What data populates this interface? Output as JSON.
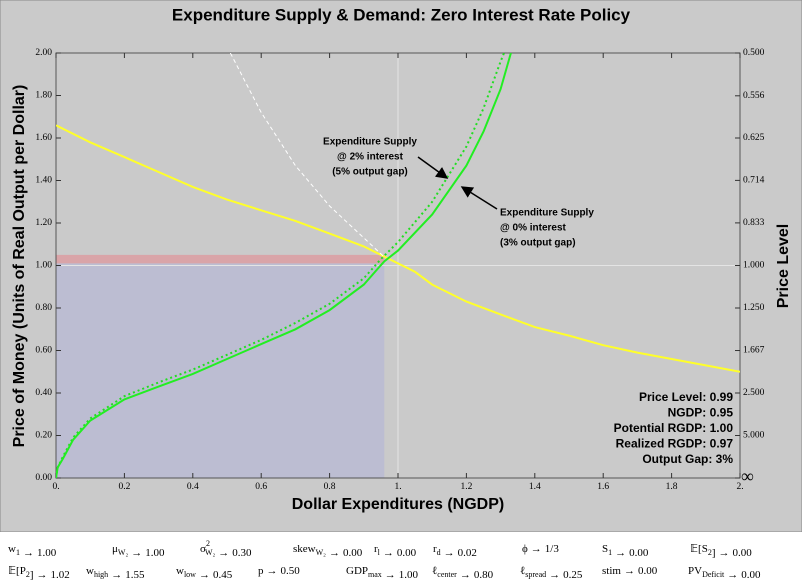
{
  "chart_data": {
    "type": "line",
    "title": "Expenditure Supply & Demand: Zero Interest Rate Policy",
    "x_label": "Dollar Expenditures (NGDP)",
    "y_label": "Price of Money (Units of Real Output per Dollar)",
    "y2_label": "Price Level",
    "xlim": [
      0,
      2
    ],
    "ylim": [
      0,
      2
    ],
    "y2scale": "reciprocal",
    "xticks": [
      {
        "value": 0,
        "label": "0."
      },
      0.2,
      0.4,
      0.6,
      0.8,
      {
        "value": 1,
        "label": "1."
      },
      1.2,
      1.4,
      1.6,
      1.8,
      {
        "value": 2,
        "label": "2."
      }
    ],
    "yticks": [
      {
        "value": 0,
        "label": "0.00"
      },
      {
        "value": 0.2,
        "label": "0.20"
      },
      {
        "value": 0.4,
        "label": "0.40"
      },
      {
        "value": 0.6,
        "label": "0.60"
      },
      {
        "value": 0.8,
        "label": "0.80"
      },
      {
        "value": 1,
        "label": "1.00"
      },
      {
        "value": 1.2,
        "label": "1.20"
      },
      {
        "value": 1.4,
        "label": "1.40"
      },
      {
        "value": 1.6,
        "label": "1.60"
      },
      {
        "value": 1.8,
        "label": "1.80"
      },
      {
        "value": 2,
        "label": "2.00"
      }
    ],
    "y2ticks": [
      {
        "value": 0.5,
        "label": "0.500"
      },
      {
        "value": 0.556,
        "label": "0.556"
      },
      {
        "value": 0.625,
        "label": "0.625"
      },
      {
        "value": 0.714,
        "label": "0.714"
      },
      {
        "value": 0.833,
        "label": "0.833"
      },
      {
        "value": 1,
        "label": "1.000"
      },
      {
        "value": 1.25,
        "label": "1.250"
      },
      {
        "value": 1.667,
        "label": "1.667"
      },
      {
        "value": 2.5,
        "label": "2.500"
      },
      {
        "value": 5,
        "label": "5.000"
      },
      {
        "value": null,
        "label": "∞"
      }
    ],
    "gridlines_x": [
      1
    ],
    "gridlines_y": [
      1
    ],
    "shaded_regions": [
      {
        "x": [
          0,
          0.96
        ],
        "y": [
          0,
          1.01
        ],
        "color": "#bcbdd2"
      },
      {
        "x": [
          0,
          0.96
        ],
        "y": [
          1.01,
          1.05
        ],
        "color": "#d9a4a8"
      }
    ],
    "series": [
      {
        "color": "#ffff2a",
        "style": "solid",
        "x": [
          0,
          0.1,
          0.2,
          0.3,
          0.4,
          0.5,
          0.6,
          0.7,
          0.8,
          0.9,
          0.95,
          1.0,
          1.05,
          1.1,
          1.2,
          1.3,
          1.4,
          1.5,
          1.6,
          1.7,
          1.8,
          1.9,
          2.0
        ],
        "values": [
          1.66,
          1.58,
          1.51,
          1.44,
          1.37,
          1.31,
          1.26,
          1.21,
          1.15,
          1.09,
          1.05,
          1.01,
          0.97,
          0.91,
          0.83,
          0.77,
          0.71,
          0.67,
          0.625,
          0.59,
          0.56,
          0.53,
          0.5
        ]
      },
      {
        "color": "#ffffff",
        "style": "dashed",
        "x": [
          0.51,
          0.6,
          0.7,
          0.8,
          0.9,
          0.96
        ],
        "values": [
          2.0,
          1.72,
          1.47,
          1.28,
          1.13,
          1.04
        ]
      },
      {
        "color": "#22dd22",
        "style": "dotted",
        "x": [
          0,
          0.005,
          0.02,
          0.05,
          0.1,
          0.2,
          0.3,
          0.4,
          0.5,
          0.6,
          0.7,
          0.8,
          0.9,
          0.95,
          1.0,
          1.1,
          1.2,
          1.25,
          1.3,
          1.31
        ],
        "values": [
          0,
          0.05,
          0.1,
          0.19,
          0.28,
          0.385,
          0.45,
          0.51,
          0.58,
          0.65,
          0.73,
          0.82,
          0.94,
          1.03,
          1.11,
          1.3,
          1.56,
          1.74,
          1.96,
          2.0
        ]
      },
      {
        "color": "#22ee22",
        "style": "solid",
        "x": [
          0,
          0.005,
          0.02,
          0.05,
          0.1,
          0.2,
          0.3,
          0.4,
          0.5,
          0.6,
          0.7,
          0.8,
          0.9,
          0.96,
          1.0,
          1.1,
          1.2,
          1.25,
          1.3,
          1.33
        ],
        "values": [
          0,
          0.05,
          0.09,
          0.18,
          0.27,
          0.37,
          0.43,
          0.49,
          0.56,
          0.63,
          0.7,
          0.79,
          0.91,
          1.02,
          1.07,
          1.24,
          1.47,
          1.63,
          1.83,
          2.0
        ]
      }
    ],
    "annotations": [
      {
        "lines": [
          "Expenditure Supply",
          "@ 2% interest",
          "(5% output gap)"
        ]
      },
      {
        "lines": [
          "Expenditure Supply",
          "@ 0% interest",
          "(3% output gap)"
        ]
      }
    ],
    "info_lines": [
      "Price Level: 0.99",
      "NGDP: 0.95",
      "Potential RGDP: 1.00",
      "Realized RGDP: 0.97",
      "Output Gap: 3%"
    ]
  },
  "controls": {
    "arrow": "→",
    "rows": [
      [
        {
          "name": "w",
          "sub": "1",
          "value": "1.00"
        },
        {
          "name": "μ",
          "sub": "W₂",
          "value": "1.00"
        },
        {
          "name": "σ",
          "sup": "2",
          "sub": "W₂",
          "value": "0.30"
        },
        {
          "name": "skew",
          "sub": "W₂",
          "value": "0.00"
        },
        {
          "name": "r",
          "sub": "l",
          "value": "0.00"
        },
        {
          "name": "r",
          "sub": "d",
          "value": "0.02"
        },
        {
          "name": "ϕ",
          "value": "1/3"
        },
        {
          "name": "S",
          "sub": "1",
          "value": "0.00"
        },
        {
          "name": "𝔼[S",
          "sub": "2",
          "tail": "]",
          "value": "0.00"
        }
      ],
      [
        {
          "name": "𝔼[P",
          "sub": "2",
          "tail": "]",
          "value": "1.02"
        },
        {
          "name": "w",
          "sub": "high",
          "value": "1.55"
        },
        {
          "name": "w",
          "sub": "low",
          "value": "0.45"
        },
        {
          "name": "p",
          "value": "0.50"
        },
        {
          "name": "GDP",
          "sub": "max",
          "value": "1.00"
        },
        {
          "name": "ℓ",
          "sub": "center",
          "value": "0.80"
        },
        {
          "name": "ℓ",
          "sub": "spread",
          "value": "0.25"
        },
        {
          "name": "stim",
          "value": "0.00"
        },
        {
          "name": "PV",
          "sub": "Deficit",
          "value": "0.00"
        }
      ]
    ]
  }
}
